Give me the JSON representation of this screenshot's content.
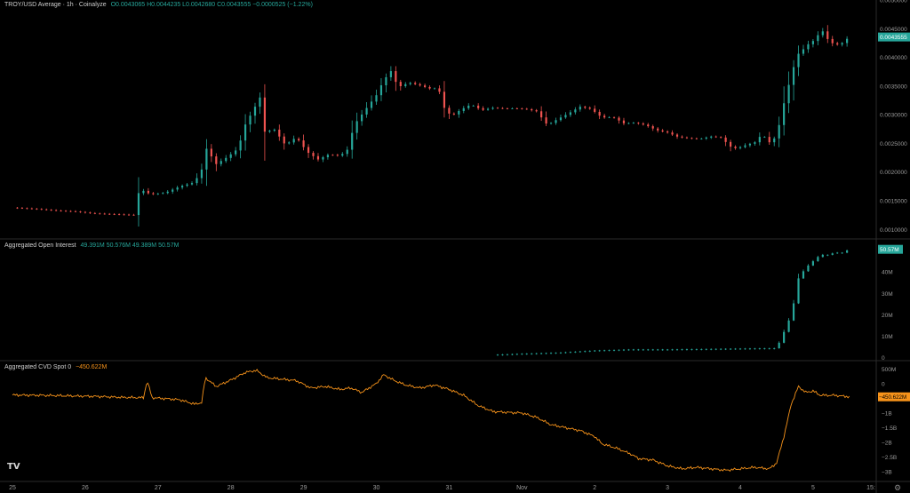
{
  "header": {
    "price_title": "TROY/USD Average · 1h · Coinalyze",
    "price_ohlc": "O0.0043065 H0.0044235 L0.0042680 C0.0043555 −0.0000525 (−1.22%)",
    "oi_title": "Aggregated Open Interest",
    "oi_values": "49.391M 50.576M 49.389M 50.57M",
    "cvd_title": "Aggregated CVD Spot 0",
    "cvd_value": "−450.622M"
  },
  "colors": {
    "up": "#26a69a",
    "down": "#ef5350",
    "cvd": "#f7931a",
    "bg": "#000000"
  },
  "icons": {
    "logo": "tradingview-logo-icon",
    "settings": "gear-icon"
  },
  "time_axis": [
    "25",
    "26",
    "27",
    "28",
    "29",
    "30",
    "31",
    "Nov",
    "2",
    "3",
    "4",
    "5",
    "15:"
  ],
  "chart_data": [
    {
      "type": "candlestick",
      "title": "TROY/USD Average · 1h · Coinalyze",
      "y_ticks": [
        "0.0050000",
        "0.0045000",
        "0.0040000",
        "0.0035000",
        "0.0030000",
        "0.0025000",
        "0.0020000",
        "0.0015000",
        "0.0010000"
      ],
      "ylim": [
        0.00085,
        0.005
      ],
      "last_price_label": "0.0043555",
      "close_path": [
        [
          0,
          0.00138
        ],
        [
          0.3,
          0.00136
        ],
        [
          0.6,
          0.00133
        ],
        [
          0.9,
          0.00131
        ],
        [
          1.1,
          0.00128
        ],
        [
          1.3,
          0.00127
        ],
        [
          1.5,
          0.00126
        ],
        [
          1.7,
          0.00125
        ],
        [
          1.74,
          0.00171
        ],
        [
          1.9,
          0.00161
        ],
        [
          2.1,
          0.00164
        ],
        [
          2.3,
          0.00175
        ],
        [
          2.5,
          0.00182
        ],
        [
          2.62,
          0.00209
        ],
        [
          2.65,
          0.00244
        ],
        [
          2.8,
          0.00214
        ],
        [
          2.95,
          0.00226
        ],
        [
          3.1,
          0.00241
        ],
        [
          3.2,
          0.00283
        ],
        [
          3.3,
          0.00306
        ],
        [
          3.4,
          0.0033
        ],
        [
          3.45,
          0.0027
        ],
        [
          3.6,
          0.00274
        ],
        [
          3.75,
          0.00247
        ],
        [
          3.9,
          0.00261
        ],
        [
          4.05,
          0.00235
        ],
        [
          4.2,
          0.00222
        ],
        [
          4.35,
          0.00231
        ],
        [
          4.5,
          0.00228
        ],
        [
          4.6,
          0.00239
        ],
        [
          4.7,
          0.00283
        ],
        [
          4.85,
          0.00309
        ],
        [
          5.0,
          0.00334
        ],
        [
          5.1,
          0.0036
        ],
        [
          5.2,
          0.00376
        ],
        [
          5.3,
          0.00348
        ],
        [
          5.45,
          0.00356
        ],
        [
          5.6,
          0.00351
        ],
        [
          5.75,
          0.00345
        ],
        [
          5.85,
          0.00347
        ],
        [
          5.95,
          0.00305
        ],
        [
          6.05,
          0.00299
        ],
        [
          6.15,
          0.00308
        ],
        [
          6.3,
          0.00318
        ],
        [
          6.45,
          0.00308
        ],
        [
          6.6,
          0.00312
        ],
        [
          6.75,
          0.00311
        ],
        [
          6.9,
          0.00311
        ],
        [
          7.05,
          0.0031
        ],
        [
          7.2,
          0.00306
        ],
        [
          7.35,
          0.00282
        ],
        [
          7.5,
          0.00293
        ],
        [
          7.65,
          0.00303
        ],
        [
          7.8,
          0.00314
        ],
        [
          7.95,
          0.0031
        ],
        [
          8.1,
          0.00295
        ],
        [
          8.25,
          0.00296
        ],
        [
          8.4,
          0.00285
        ],
        [
          8.55,
          0.00286
        ],
        [
          8.7,
          0.00282
        ],
        [
          8.85,
          0.00273
        ],
        [
          9.0,
          0.00269
        ],
        [
          9.15,
          0.00261
        ],
        [
          9.3,
          0.00259
        ],
        [
          9.45,
          0.00258
        ],
        [
          9.6,
          0.00262
        ],
        [
          9.75,
          0.0026
        ],
        [
          9.85,
          0.00245
        ],
        [
          9.95,
          0.00241
        ],
        [
          10.05,
          0.00246
        ],
        [
          10.2,
          0.00252
        ],
        [
          10.3,
          0.00266
        ],
        [
          10.4,
          0.00252
        ],
        [
          10.5,
          0.00262
        ],
        [
          10.55,
          0.00292
        ],
        [
          10.6,
          0.0032
        ],
        [
          10.7,
          0.00368
        ],
        [
          10.78,
          0.00404
        ],
        [
          10.85,
          0.00412
        ],
        [
          10.95,
          0.00425
        ],
        [
          11.05,
          0.00432
        ],
        [
          11.1,
          0.00452
        ],
        [
          11.2,
          0.00432
        ],
        [
          11.3,
          0.00421
        ],
        [
          11.4,
          0.00425
        ],
        [
          11.5,
          0.00436
        ]
      ]
    },
    {
      "type": "candlestick",
      "title": "Aggregated Open Interest",
      "y_ticks": [
        "40M",
        "30M",
        "20M",
        "10M",
        "0"
      ],
      "ylim": [
        -1,
        55
      ],
      "last_value_label": "50.57M",
      "unit": "M",
      "close_path": [
        [
          6.6,
          1.3
        ],
        [
          7.0,
          1.8
        ],
        [
          7.5,
          2.3
        ],
        [
          8.0,
          3.3
        ],
        [
          8.5,
          3.8
        ],
        [
          9.0,
          3.8
        ],
        [
          9.5,
          4.0
        ],
        [
          10.0,
          4.2
        ],
        [
          10.5,
          4.4
        ],
        [
          10.6,
          12.0
        ],
        [
          10.7,
          20.0
        ],
        [
          10.75,
          28.0
        ],
        [
          10.8,
          37.0
        ],
        [
          10.9,
          42.0
        ],
        [
          11.0,
          45.0
        ],
        [
          11.1,
          48.0
        ],
        [
          11.2,
          48.0
        ],
        [
          11.3,
          49.0
        ],
        [
          11.4,
          49.0
        ],
        [
          11.5,
          50.57
        ]
      ]
    },
    {
      "type": "line",
      "title": "Aggregated CVD Spot 0",
      "y_ticks": [
        "500M",
        "0",
        "−500M",
        "−1B",
        "−1.5B",
        "−2B",
        "−2.5B",
        "−3B"
      ],
      "ylim": [
        -3.3,
        0.75
      ],
      "unit": "B",
      "last_value_label": "−450.622M",
      "series": [
        {
          "points": [
            [
              0,
              -0.39
            ],
            [
              0.4,
              -0.4
            ],
            [
              0.8,
              -0.42
            ],
            [
              1.2,
              -0.44
            ],
            [
              1.5,
              -0.47
            ],
            [
              1.8,
              -0.48
            ],
            [
              1.85,
              0.1
            ],
            [
              1.92,
              -0.48
            ],
            [
              2.3,
              -0.55
            ],
            [
              2.5,
              -0.7
            ],
            [
              2.6,
              -0.65
            ],
            [
              2.65,
              0.2
            ],
            [
              2.8,
              -0.1
            ],
            [
              3.0,
              0.12
            ],
            [
              3.2,
              0.38
            ],
            [
              3.35,
              0.45
            ],
            [
              3.5,
              0.2
            ],
            [
              3.7,
              0.15
            ],
            [
              3.9,
              0.1
            ],
            [
              4.1,
              -0.15
            ],
            [
              4.3,
              -0.1
            ],
            [
              4.5,
              -0.2
            ],
            [
              4.65,
              -0.15
            ],
            [
              4.8,
              -0.3
            ],
            [
              5.0,
              0.0
            ],
            [
              5.1,
              0.3
            ],
            [
              5.25,
              0.1
            ],
            [
              5.4,
              -0.05
            ],
            [
              5.6,
              -0.15
            ],
            [
              5.8,
              -0.05
            ],
            [
              6.0,
              -0.2
            ],
            [
              6.2,
              -0.4
            ],
            [
              6.4,
              -0.75
            ],
            [
              6.6,
              -0.95
            ],
            [
              6.8,
              -0.98
            ],
            [
              7.0,
              -1.0
            ],
            [
              7.2,
              -1.15
            ],
            [
              7.4,
              -1.4
            ],
            [
              7.6,
              -1.5
            ],
            [
              7.8,
              -1.6
            ],
            [
              8.0,
              -1.8
            ],
            [
              8.1,
              -2.05
            ],
            [
              8.3,
              -2.2
            ],
            [
              8.5,
              -2.4
            ],
            [
              8.6,
              -2.55
            ],
            [
              8.8,
              -2.6
            ],
            [
              9.0,
              -2.8
            ],
            [
              9.2,
              -2.9
            ],
            [
              9.4,
              -2.85
            ],
            [
              9.6,
              -2.9
            ],
            [
              9.8,
              -2.95
            ],
            [
              10.0,
              -2.9
            ],
            [
              10.2,
              -2.85
            ],
            [
              10.4,
              -2.9
            ],
            [
              10.5,
              -2.7
            ],
            [
              10.6,
              -1.8
            ],
            [
              10.7,
              -0.7
            ],
            [
              10.8,
              -0.1
            ],
            [
              10.9,
              -0.3
            ],
            [
              11.0,
              -0.25
            ],
            [
              11.1,
              -0.4
            ],
            [
              11.3,
              -0.4
            ],
            [
              11.5,
              -0.45
            ]
          ]
        }
      ]
    }
  ]
}
